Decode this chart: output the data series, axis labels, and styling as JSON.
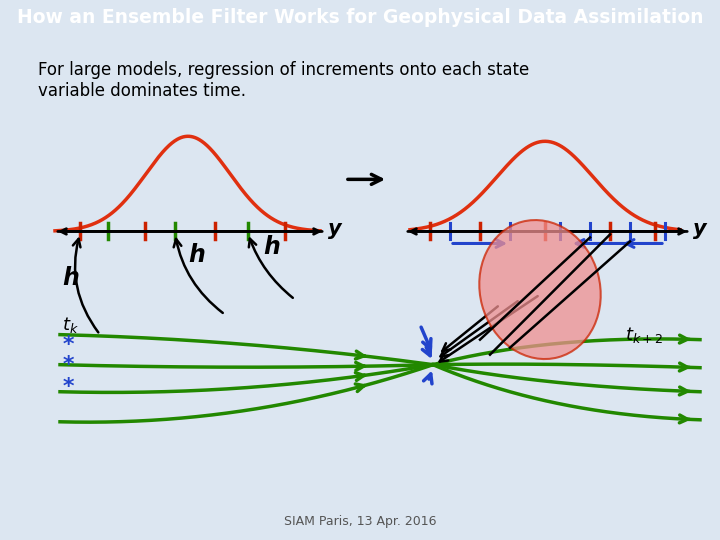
{
  "title": "How an Ensemble Filter Works for Geophysical Data Assimilation",
  "title_bg": "#4472c4",
  "title_fg": "#ffffff",
  "body_text": "For large models, regression of increments onto each state\nvariable dominates time.",
  "footer_text": "SIAM Paris, 13 Apr. 2016",
  "slide_bg": "#dce6f1",
  "content_bg": "#ffffff"
}
